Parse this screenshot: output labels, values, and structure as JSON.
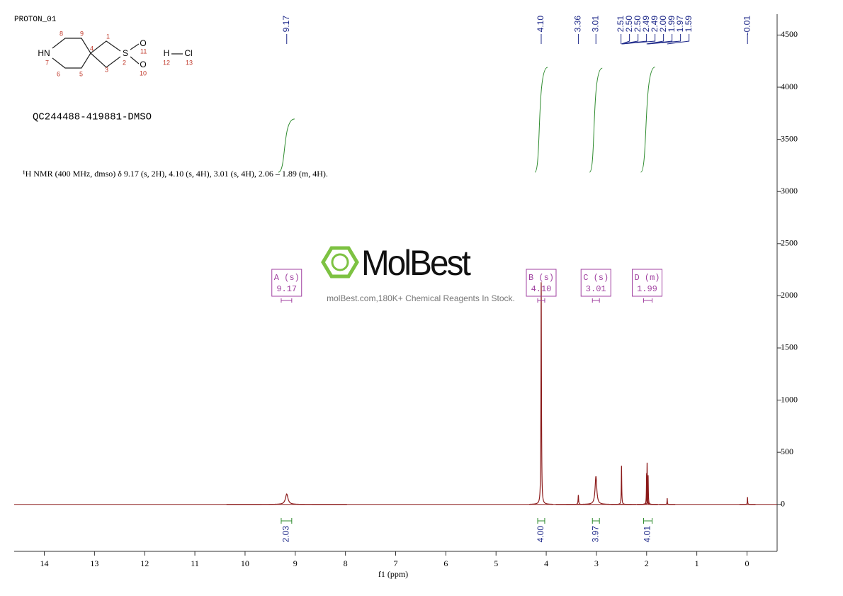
{
  "chart_data": {
    "type": "nmr",
    "title": "PROTON_01",
    "subtitle": "QC244488-419881-DMSO",
    "description": "¹H NMR (400 MHz, dmso) δ 9.17 (s, 2H), 4.10 (s, 4H), 3.01 (s, 4H), 2.06 – 1.89 (m, 4H).",
    "xlabel": "f1 (ppm)",
    "xlim": [
      14.6,
      -0.6
    ],
    "xticks": [
      14,
      13,
      12,
      11,
      10,
      9,
      8,
      7,
      6,
      5,
      4,
      3,
      2,
      1,
      0
    ],
    "ylim": [
      -450,
      4700
    ],
    "yticks": [
      0,
      500,
      1000,
      1500,
      2000,
      2500,
      3000,
      3500,
      4000,
      4500
    ],
    "color": "#8b1a1a",
    "structure": {
      "atoms": [
        "HN",
        "S",
        "O",
        "O",
        "H",
        "Cl"
      ],
      "numbers": [
        "8",
        "9",
        "1",
        "4",
        "11",
        "2",
        "3",
        "10",
        "7",
        "6",
        "5",
        "12",
        "13"
      ]
    },
    "watermark": "MolBest",
    "watermark_caption": "molBest.com,180K+ Chemical Reagents In Stock.",
    "peaks": {
      "x": [
        9.17,
        4.1,
        3.36,
        3.01,
        2.5,
        2.0,
        1.99,
        1.97,
        1.59,
        -0.01
      ],
      "values": [
        100,
        2130,
        90,
        270,
        370,
        300,
        400,
        280,
        60,
        70
      ],
      "widths": [
        0.03,
        0.006,
        0.006,
        0.02,
        0.005,
        0.005,
        0.005,
        0.005,
        0.004,
        0.004
      ]
    },
    "peak_picks": [
      {
        "value": 9.17,
        "label": "9.17"
      },
      {
        "value": 4.1,
        "label": "4.10"
      },
      {
        "value": 3.36,
        "label": "3.36"
      },
      {
        "value": 3.01,
        "label": "3.01"
      },
      {
        "value": 2.51,
        "label": "2.51"
      },
      {
        "value": 2.5,
        "label": "2.50"
      },
      {
        "value": 2.5,
        "label": "2.50"
      },
      {
        "value": 2.49,
        "label": "2.49"
      },
      {
        "value": 2.49,
        "label": "2.49"
      },
      {
        "value": 2.0,
        "label": "2.00"
      },
      {
        "value": 1.99,
        "label": "1.99"
      },
      {
        "value": 1.97,
        "label": "1.97"
      },
      {
        "value": 1.59,
        "label": "1.59"
      },
      {
        "value": -0.01,
        "label": "-0.01"
      }
    ],
    "integrals": {
      "ranges": [
        [
          9.28,
          9.07
        ],
        [
          4.17,
          4.03
        ],
        [
          3.08,
          2.94
        ],
        [
          2.06,
          1.89
        ]
      ],
      "values": [
        2.03,
        4,
        3.97,
        4.01
      ],
      "value_labels": [
        "2.03",
        "4.00",
        "3.97",
        "4.01"
      ]
    },
    "multiplets": {
      "labels": [
        "A (s)",
        "B (s)",
        "C (s)",
        "D (m)"
      ],
      "shifts": [
        9.17,
        4.1,
        3.01,
        1.99
      ],
      "shift_labels": [
        "9.17",
        "4.10",
        "3.01",
        "1.99"
      ]
    }
  }
}
